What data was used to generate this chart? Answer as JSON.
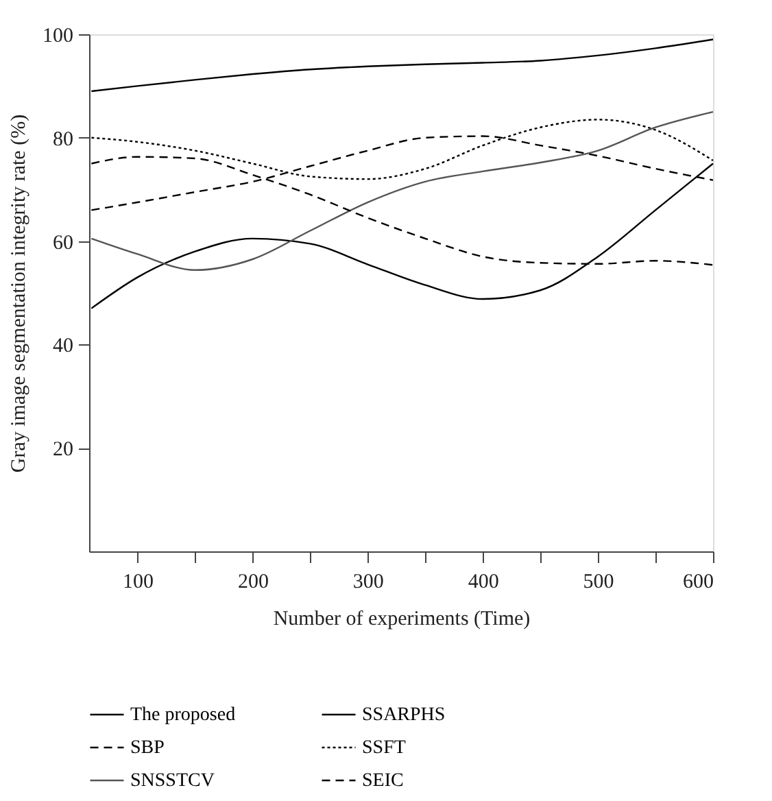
{
  "chart_data": {
    "type": "line",
    "xlabel": "Number of experiments (Time)",
    "ylabel": "Gray image segmentation integrity rate (%)",
    "xlim": [
      58,
      600
    ],
    "ylim": [
      0,
      100
    ],
    "xticks": [
      100,
      {
        "value": 150,
        "label": null
      },
      200,
      {
        "value": 250,
        "label": null
      },
      300,
      {
        "value": 350,
        "label": null
      },
      400,
      {
        "value": 450,
        "label": null
      },
      500,
      {
        "value": 550,
        "label": null
      },
      600
    ],
    "yticks": [
      20,
      40,
      60,
      80,
      100
    ],
    "x": [
      60,
      100,
      150,
      200,
      250,
      300,
      350,
      400,
      450,
      500,
      550,
      600
    ],
    "series": [
      {
        "name": "The proposed",
        "color": "#000000",
        "line_style": "solid",
        "values": [
          89,
          90,
          91.2,
          92.3,
          93.2,
          93.8,
          94.2,
          94.5,
          94.9,
          95.9,
          97.3,
          99
        ]
      },
      {
        "name": "SSARPHS",
        "color": "#000000",
        "line_style": "solid",
        "values": [
          47,
          53,
          58,
          60.5,
          59.5,
          55.5,
          51.5,
          48.8,
          50.5,
          57,
          66,
          75
        ]
      },
      {
        "name": "SBP",
        "color": "#000000",
        "line_style": "dashed",
        "values": [
          66,
          67.5,
          69.5,
          71.5,
          74.5,
          77.5,
          80,
          80.3,
          78.5,
          76.5,
          74,
          71.8
        ]
      },
      {
        "name": "SSFT",
        "color": "#000000",
        "line_style": "dotted",
        "values": [
          80,
          79.2,
          77.5,
          75,
          72.5,
          72,
          74,
          78.5,
          82,
          83.5,
          81.5,
          75.6
        ]
      },
      {
        "name": "SNSSTCV",
        "color": "#555555",
        "line_style": "solid",
        "values": [
          60.5,
          57.5,
          54.4,
          56.5,
          62,
          67.5,
          71.5,
          73.5,
          75.2,
          77.5,
          82,
          85
        ]
      },
      {
        "name": "SEIC",
        "color": "#000000",
        "line_style": "dashed",
        "values": [
          75,
          76.3,
          76,
          72.8,
          69,
          64.5,
          60.5,
          57,
          55.8,
          55.6,
          56.2,
          55.4
        ]
      }
    ],
    "grid": false,
    "legend": "bottom",
    "marker": "none"
  }
}
